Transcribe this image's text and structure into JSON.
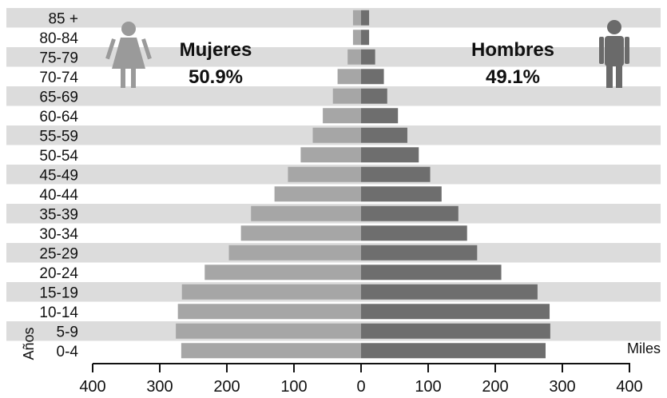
{
  "chart_data": {
    "type": "bar",
    "subtype": "population-pyramid",
    "categories": [
      "85 +",
      "80-84",
      "75-79",
      "70-74",
      "65-69",
      "60-64",
      "55-59",
      "50-54",
      "45-49",
      "40-44",
      "35-39",
      "30-34",
      "25-29",
      "20-24",
      "15-19",
      "10-14",
      "5-9",
      "0-4"
    ],
    "series": [
      {
        "name": "Mujeres",
        "side": "left",
        "color": "#a6a6a6",
        "values": [
          12,
          12,
          20,
          35,
          42,
          57,
          72,
          90,
          109,
          129,
          164,
          179,
          197,
          233,
          267,
          273,
          276,
          268
        ]
      },
      {
        "name": "Hombres",
        "side": "right",
        "color": "#6e6e6e",
        "values": [
          12,
          12,
          21,
          34,
          39,
          55,
          69,
          86,
          103,
          120,
          145,
          158,
          173,
          209,
          263,
          281,
          282,
          275
        ]
      }
    ],
    "xlim": [
      -400,
      400
    ],
    "xticks": [
      -400,
      -300,
      -200,
      -100,
      0,
      100,
      200,
      300,
      400
    ],
    "xtick_labels": [
      "400",
      "300",
      "200",
      "100",
      "0",
      "100",
      "200",
      "300",
      "400"
    ],
    "xlabel": "Miles",
    "ylabel": "Años",
    "row_band_color": "#dcdcdc",
    "annotations": [
      {
        "label": "Mujeres",
        "value": "50.9%",
        "icon": "female-person-icon"
      },
      {
        "label": "Hombres",
        "value": "49.1%",
        "icon": "male-person-icon"
      }
    ],
    "grid": false
  }
}
